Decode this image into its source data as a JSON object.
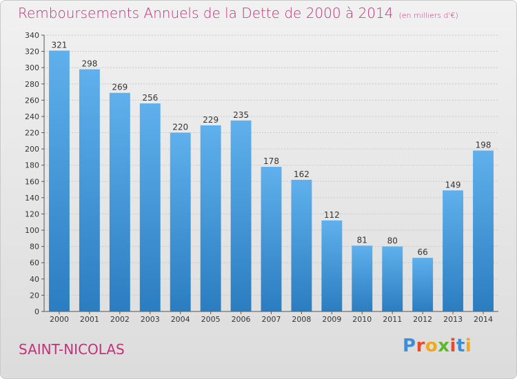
{
  "header": {
    "title": "Remboursements Annuels de la Dette de 2000 à 2014",
    "unit": "(en milliers d'€)"
  },
  "footer": {
    "commune": "SAINT-NICOLAS",
    "logo": {
      "text": "Proxiti",
      "letters": [
        {
          "ch": "P",
          "color": "#3b8fd8"
        },
        {
          "ch": "r",
          "color": "#e84a2e"
        },
        {
          "ch": "o",
          "color": "#f2a81d"
        },
        {
          "ch": "x",
          "color": "#5cb82c"
        },
        {
          "ch": "i",
          "color": "#e84a2e"
        },
        {
          "ch": "t",
          "color": "#3b8fd8"
        },
        {
          "ch": "i",
          "color": "#f2a81d"
        }
      ]
    }
  },
  "chart_data": {
    "type": "bar",
    "title": "Remboursements Annuels de la Dette de 2000 à 2014",
    "subtitle": "(en milliers d'€)",
    "categories": [
      "2000",
      "2001",
      "2002",
      "2003",
      "2004",
      "2005",
      "2006",
      "2007",
      "2008",
      "2009",
      "2010",
      "2011",
      "2012",
      "2013",
      "2014"
    ],
    "values": [
      321,
      298,
      269,
      256,
      220,
      229,
      235,
      178,
      162,
      112,
      81,
      80,
      66,
      149,
      198
    ],
    "ylim": [
      0,
      340
    ],
    "yticks": [
      0,
      20,
      40,
      60,
      80,
      100,
      120,
      140,
      160,
      180,
      200,
      220,
      240,
      260,
      280,
      300,
      320,
      340
    ],
    "grid": true,
    "bar_color_top": "#5fb0ec",
    "bar_color_bottom": "#2a7dc0",
    "xlabel": "",
    "ylabel": ""
  }
}
